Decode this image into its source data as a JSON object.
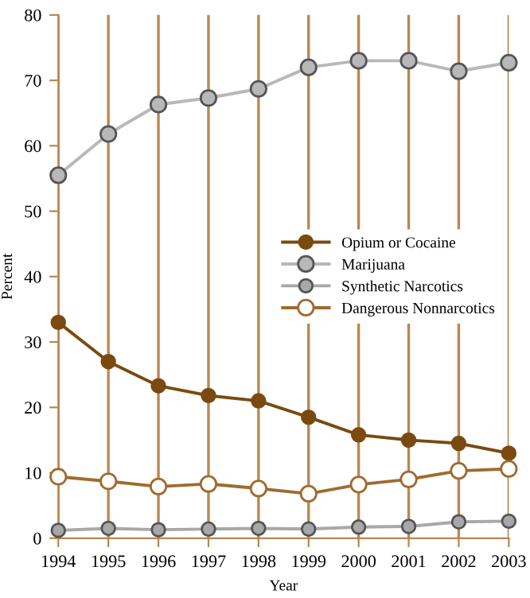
{
  "chart_data": {
    "type": "line",
    "xlabel": "Year",
    "ylabel": "Percent",
    "x": [
      1994,
      1995,
      1996,
      1997,
      1998,
      1999,
      2000,
      2001,
      2002,
      2003
    ],
    "series": [
      {
        "name": "Opium or Cocaine",
        "color": "#7a4a10",
        "values": [
          33,
          27,
          23.3,
          21.8,
          21,
          18.5,
          15.8,
          15,
          14.5,
          13
        ]
      },
      {
        "name": "Marijuana",
        "color": "#b8b8b8",
        "values": [
          55.5,
          61.8,
          66.3,
          67.3,
          68.7,
          72,
          73,
          73,
          71.4,
          72.7
        ]
      },
      {
        "name": "Synthetic Narcotics",
        "color": "#a8a8a8",
        "values": [
          1.2,
          1.5,
          1.3,
          1.4,
          1.5,
          1.4,
          1.7,
          1.8,
          2.5,
          2.6
        ]
      },
      {
        "name": "Dangerous Nonnarcotics",
        "color": "#a06a30",
        "values": [
          9.4,
          8.7,
          7.9,
          8.3,
          7.6,
          6.8,
          8.2,
          9,
          10.3,
          10.6
        ]
      }
    ],
    "xlim": [
      1994,
      2003
    ],
    "xticks": [
      1994,
      1995,
      1996,
      1997,
      1998,
      1999,
      2000,
      2001,
      2002,
      2003
    ],
    "ylim": [
      0,
      80
    ],
    "yticks": [
      0,
      10,
      20,
      30,
      40,
      50,
      60,
      70,
      80
    ],
    "grid": "x",
    "legend": "center right",
    "marker": "circle",
    "line_style": "solid"
  }
}
